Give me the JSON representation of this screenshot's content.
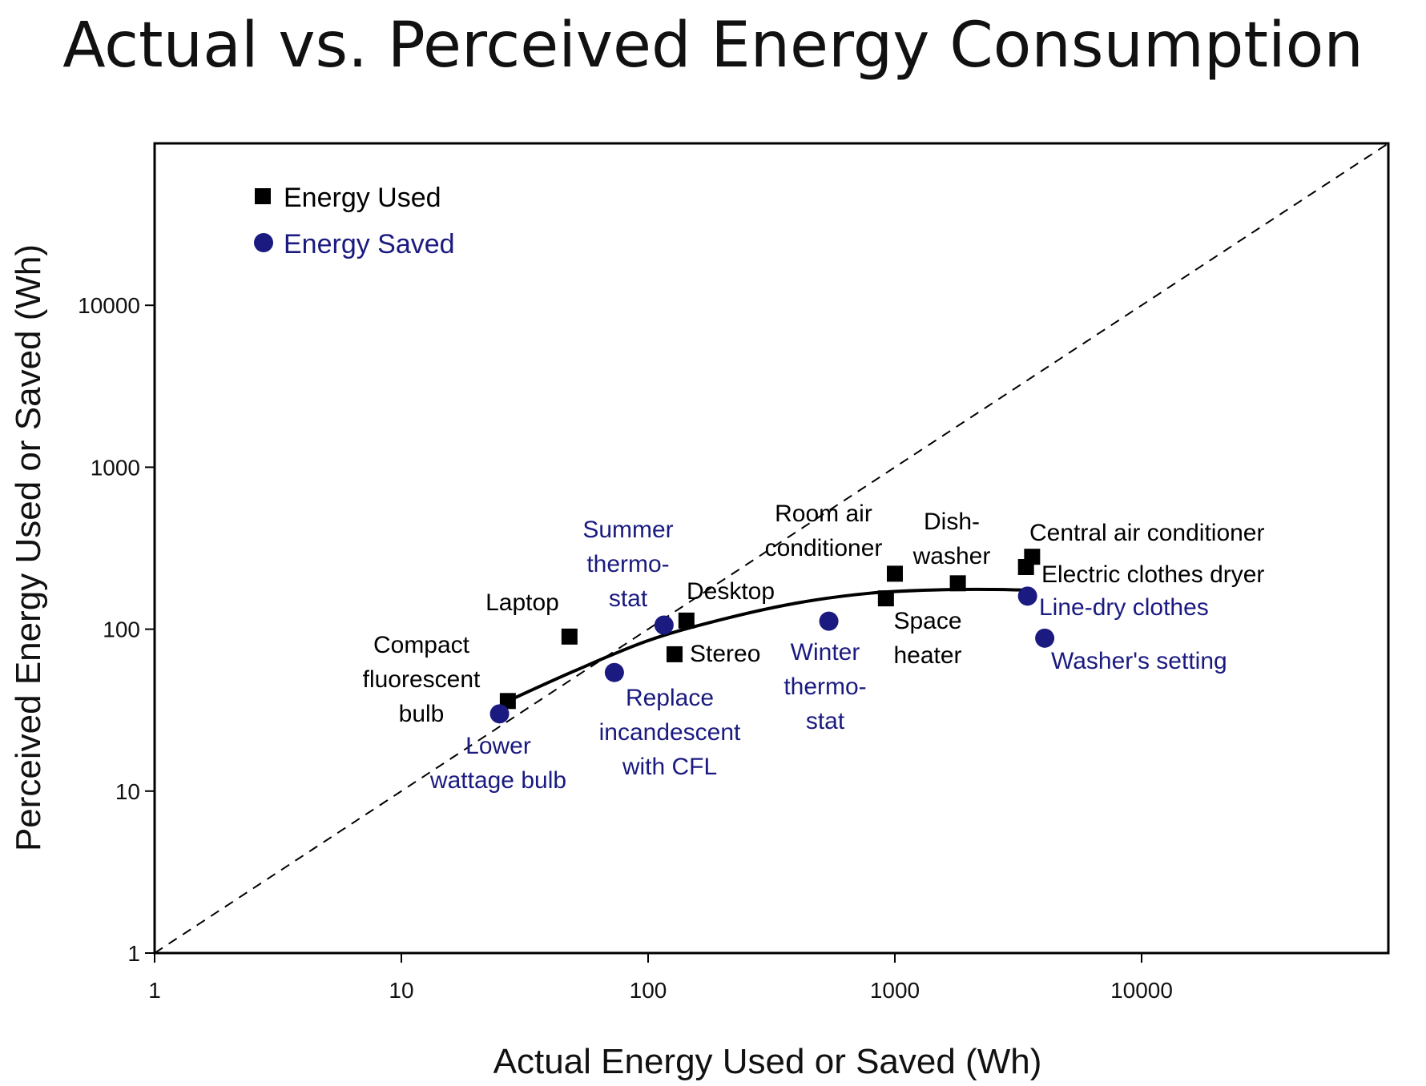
{
  "chart_data": {
    "type": "scatter",
    "title": "Actual vs. Perceived Energy Consumption",
    "xlabel": "Actual Energy Used or Saved (Wh)",
    "ylabel": "Perceived Energy Used or Saved (Wh)",
    "x_scale": "log",
    "y_scale": "log",
    "xlim": [
      1,
      100000
    ],
    "ylim": [
      1,
      100000
    ],
    "x_ticks": [
      "1",
      "10",
      "100",
      "1000",
      "10000"
    ],
    "y_ticks": [
      "1",
      "10",
      "100",
      "1000",
      "10000"
    ],
    "grid": false,
    "legend_position": "top-left",
    "colors": {
      "used": "#000000",
      "saved": "#1a1a80",
      "axis": "#000000"
    },
    "series": [
      {
        "name": "Energy Used",
        "marker": "square",
        "points": [
          {
            "label": "Compact fluorescent bulb",
            "x": 27,
            "y": 36
          },
          {
            "label": "Laptop",
            "x": 48,
            "y": 90
          },
          {
            "label": "Desktop",
            "x": 143,
            "y": 113
          },
          {
            "label": "Stereo",
            "x": 128,
            "y": 70
          },
          {
            "label": "Room air conditioner",
            "x": 1000,
            "y": 220
          },
          {
            "label": "Space heater",
            "x": 920,
            "y": 155
          },
          {
            "label": "Dish-washer",
            "x": 1800,
            "y": 192
          },
          {
            "label": "Central air conditioner",
            "x": 3600,
            "y": 280
          },
          {
            "label": "Electric clothes dryer",
            "x": 3400,
            "y": 242
          }
        ]
      },
      {
        "name": "Energy Saved",
        "marker": "circle",
        "points": [
          {
            "label": "Lower wattage bulb",
            "x": 25,
            "y": 30
          },
          {
            "label": "Replace incandescent with CFL",
            "x": 73,
            "y": 54
          },
          {
            "label": "Summer thermo-stat",
            "x": 116,
            "y": 106
          },
          {
            "label": "Winter thermo-stat",
            "x": 540,
            "y": 112
          },
          {
            "label": "Line-dry clothes",
            "x": 3450,
            "y": 160
          },
          {
            "label": "Washer's setting",
            "x": 4050,
            "y": 88
          }
        ]
      }
    ],
    "reference_line": "y = x",
    "fit_curve": [
      [
        27,
        36
      ],
      [
        50,
        55
      ],
      [
        100,
        85
      ],
      [
        200,
        115
      ],
      [
        400,
        145
      ],
      [
        800,
        167
      ],
      [
        1500,
        175
      ],
      [
        2500,
        176
      ],
      [
        3500,
        174
      ]
    ]
  }
}
